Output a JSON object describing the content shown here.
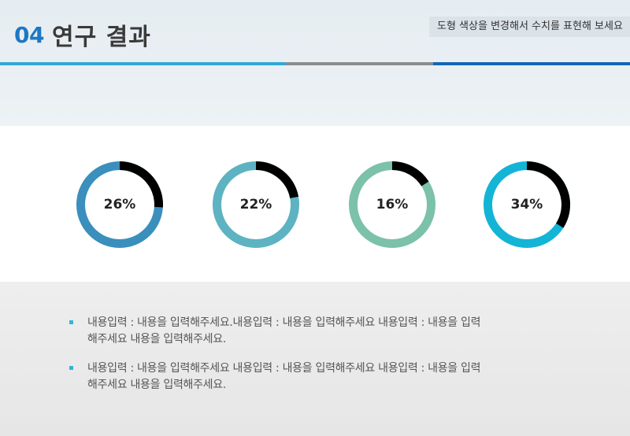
{
  "header": {
    "number": "04",
    "title": "연구 결과",
    "subtitle": "도형 색상을 변경해서 수치를 표현해 보세요"
  },
  "donuts": [
    {
      "label": "26%",
      "value": 26,
      "ring_color": "#3a8fbc",
      "accent_color": "#000000"
    },
    {
      "label": "22%",
      "value": 22,
      "ring_color": "#5db3c1",
      "accent_color": "#000000"
    },
    {
      "label": "16%",
      "value": 16,
      "ring_color": "#7cc1aa",
      "accent_color": "#000000"
    },
    {
      "label": "34%",
      "value": 34,
      "ring_color": "#13b4d6",
      "accent_color": "#000000"
    }
  ],
  "bullets": [
    {
      "line1": "내용입력 : 내용을 입력해주세요.내용입력 : 내용을 입력해주세요 내용입력 : 내용을 입력",
      "line2": "해주세요 내용을 입력해주세요."
    },
    {
      "line1": "내용입력 : 내용을 입력해주세요 내용입력 : 내용을 입력해주세요 내용입력 : 내용을 입력",
      "line2": "해주세요 내용을 입력해주세요."
    }
  ],
  "colors": {
    "accent_blue": "#1d78c3",
    "line_cyan": "#31a8d6",
    "line_gray": "#8c8c8c",
    "line_navy": "#1565b8",
    "bullet": "#30b6d8"
  }
}
